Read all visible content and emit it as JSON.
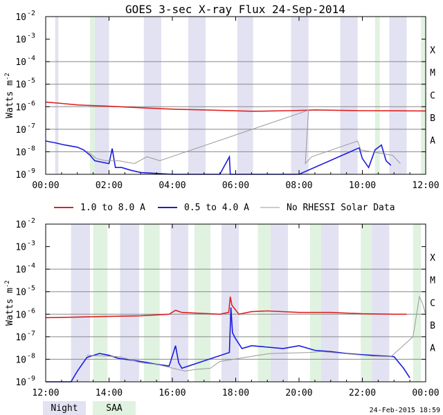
{
  "chart_data": [
    {
      "type": "line",
      "panel": "top",
      "title": "GOES 3-sec X-ray Flux   24-Sep-2014",
      "ylabel": "Watts m",
      "ylabel_sup": "-2",
      "yscale": "log",
      "ylim": [
        1e-09,
        0.01
      ],
      "ytick_exponents": [
        -2,
        -3,
        -4,
        -5,
        -6,
        -7,
        -8,
        -9
      ],
      "xlim_hours": [
        0,
        12
      ],
      "xticks": [
        "00:00",
        "02:00",
        "04:00",
        "06:00",
        "08:00",
        "10:00",
        "12:00"
      ],
      "class_labels": [
        {
          "label": "X",
          "exp": -4
        },
        {
          "label": "M",
          "exp": -5
        },
        {
          "label": "C",
          "exp": -6
        },
        {
          "label": "B",
          "exp": -7
        },
        {
          "label": "A",
          "exp": -8
        }
      ],
      "night_intervals": [
        [
          0.3,
          0.4
        ],
        [
          1.55,
          2.0
        ],
        [
          3.1,
          3.65
        ],
        [
          4.5,
          5.05
        ],
        [
          6.05,
          6.55
        ],
        [
          7.75,
          8.3
        ],
        [
          9.3,
          9.85
        ],
        [
          10.85,
          11.4
        ]
      ],
      "saa_intervals": [
        [
          1.4,
          1.55
        ],
        [
          10.4,
          10.55
        ],
        [
          11.85,
          12.0
        ]
      ],
      "series": [
        {
          "name": "1.0 to 8.0 A",
          "color": "#e02020",
          "points": [
            [
              0.0,
              1.6e-06
            ],
            [
              0.5,
              1.4e-06
            ],
            [
              1.0,
              1.2e-06
            ],
            [
              2.0,
              1.05e-06
            ],
            [
              3.0,
              9e-07
            ],
            [
              4.0,
              7.8e-07
            ],
            [
              5.0,
              7.2e-07
            ],
            [
              6.0,
              6.6e-07
            ],
            [
              6.5,
              6.3e-07
            ],
            [
              7.0,
              6.4e-07
            ],
            [
              7.7,
              6.7e-07
            ],
            [
              8.3,
              7e-07
            ],
            [
              8.5,
              7.2e-07
            ],
            [
              9.95,
              6.7e-07
            ],
            [
              11.0,
              6.6e-07
            ],
            [
              12.0,
              6.5e-07
            ]
          ]
        },
        {
          "name": "0.5 to 4.0 A",
          "color": "#1a1ae0",
          "points": [
            [
              0.0,
              3e-08
            ],
            [
              0.3,
              2.5e-08
            ],
            [
              0.6,
              2e-08
            ],
            [
              1.0,
              1.6e-08
            ],
            [
              1.2,
              1.2e-08
            ],
            [
              1.4,
              7e-09
            ],
            [
              1.55,
              4e-09
            ],
            [
              2.0,
              3e-09
            ],
            [
              2.1,
              1.4e-08
            ],
            [
              2.2,
              2e-09
            ],
            [
              2.4,
              2e-09
            ],
            [
              2.7,
              1.5e-09
            ],
            [
              3.0,
              1.2e-09
            ],
            [
              4.0,
              1e-09
            ],
            [
              5.5,
              1e-09
            ],
            [
              5.8,
              6e-09
            ],
            [
              5.83,
              1e-09
            ],
            [
              7.0,
              1e-09
            ],
            [
              7.7,
              1e-09
            ],
            [
              8.0,
              1e-09
            ],
            [
              9.9,
              1.5e-08
            ],
            [
              10.0,
              5e-09
            ],
            [
              10.2,
              2e-09
            ],
            [
              10.4,
              1.2e-08
            ],
            [
              10.6,
              2e-08
            ],
            [
              10.75,
              4e-09
            ],
            [
              10.9,
              2.5e-09
            ]
          ]
        },
        {
          "name": "No RHESSI Solar Data",
          "color": "#999999",
          "points": [
            [
              1.3,
              1.1e-08
            ],
            [
              1.6,
              5e-09
            ],
            [
              1.9,
              4e-09
            ],
            [
              2.3,
              4e-09
            ],
            [
              2.8,
              3e-09
            ],
            [
              3.2,
              6e-09
            ],
            [
              3.6,
              4e-09
            ],
            [
              8.3,
              7e-07
            ],
            [
              8.2,
              3e-09
            ],
            [
              8.4,
              6e-09
            ],
            [
              9.85,
              3e-08
            ],
            [
              9.95,
              1.2e-08
            ],
            [
              10.95,
              7e-09
            ],
            [
              11.2,
              3e-09
            ]
          ]
        }
      ]
    },
    {
      "type": "line",
      "panel": "bottom",
      "ylabel": "Watts m",
      "ylabel_sup": "-2",
      "yscale": "log",
      "ylim": [
        1e-09,
        0.01
      ],
      "ytick_exponents": [
        -2,
        -3,
        -4,
        -5,
        -6,
        -7,
        -8,
        -9
      ],
      "xlim_hours": [
        12,
        24
      ],
      "xticks": [
        "12:00",
        "14:00",
        "16:00",
        "18:00",
        "20:00",
        "22:00",
        "00:00"
      ],
      "class_labels": [
        {
          "label": "X",
          "exp": -4
        },
        {
          "label": "M",
          "exp": -5
        },
        {
          "label": "C",
          "exp": -6
        },
        {
          "label": "B",
          "exp": -7
        },
        {
          "label": "A",
          "exp": -8
        }
      ],
      "night_intervals": [
        [
          12.8,
          13.4
        ],
        [
          14.35,
          14.95
        ],
        [
          15.95,
          16.5
        ],
        [
          17.55,
          18.1
        ],
        [
          19.1,
          19.65
        ],
        [
          20.7,
          21.25
        ],
        [
          22.3,
          22.85
        ]
      ],
      "saa_intervals": [
        [
          13.5,
          13.95
        ],
        [
          15.1,
          15.6
        ],
        [
          16.7,
          17.2
        ],
        [
          18.7,
          19.1
        ],
        [
          20.35,
          20.7
        ],
        [
          21.95,
          22.3
        ],
        [
          23.6,
          23.85
        ]
      ],
      "series": [
        {
          "name": "1.0 to 8.0 A",
          "color": "#e02020",
          "points": [
            [
              12.0,
              7e-07
            ],
            [
              13.0,
              7.5e-07
            ],
            [
              14.0,
              8e-07
            ],
            [
              15.0,
              8.5e-07
            ],
            [
              15.9,
              1e-06
            ],
            [
              16.1,
              1.5e-06
            ],
            [
              16.3,
              1.2e-06
            ],
            [
              17.5,
              1e-06
            ],
            [
              17.78,
              1.2e-06
            ],
            [
              17.83,
              6e-06
            ],
            [
              17.88,
              2.5e-06
            ],
            [
              18.1,
              1e-06
            ],
            [
              18.5,
              1.3e-06
            ],
            [
              19.0,
              1.4e-06
            ],
            [
              20.0,
              1.2e-06
            ],
            [
              21.0,
              1.2e-06
            ],
            [
              22.0,
              1.05e-06
            ],
            [
              23.0,
              1e-06
            ],
            [
              23.4,
              1e-06
            ]
          ]
        },
        {
          "name": "0.5 to 4.0 A",
          "color": "#1a1ae0",
          "points": [
            [
              12.0,
              1e-09
            ],
            [
              12.8,
              1e-09
            ],
            [
              13.0,
              3e-09
            ],
            [
              13.3,
              1.2e-08
            ],
            [
              13.7,
              1.8e-08
            ],
            [
              14.0,
              1.5e-08
            ],
            [
              14.3,
              1.1e-08
            ],
            [
              15.0,
              8e-09
            ],
            [
              15.5,
              6e-09
            ],
            [
              15.9,
              5e-09
            ],
            [
              16.1,
              4e-08
            ],
            [
              16.2,
              7e-09
            ],
            [
              16.3,
              4e-09
            ],
            [
              17.8,
              2e-08
            ],
            [
              17.85,
              2e-06
            ],
            [
              17.9,
              1.5e-07
            ],
            [
              18.0,
              8e-08
            ],
            [
              18.2,
              3e-08
            ],
            [
              18.5,
              4e-08
            ],
            [
              19.5,
              3e-08
            ],
            [
              20.0,
              4e-08
            ],
            [
              20.5,
              2.5e-08
            ],
            [
              21.0,
              2.2e-08
            ],
            [
              21.5,
              1.8e-08
            ],
            [
              22.0,
              1.6e-08
            ],
            [
              23.0,
              1.3e-08
            ],
            [
              23.3,
              4e-09
            ],
            [
              23.5,
              1.5e-09
            ]
          ]
        },
        {
          "name": "No RHESSI Solar Data",
          "color": "#999999",
          "points": [
            [
              13.3,
              1.5e-08
            ],
            [
              14.35,
              1.3e-08
            ],
            [
              15.0,
              7e-09
            ],
            [
              15.5,
              6e-09
            ],
            [
              16.4,
              3e-09
            ],
            [
              16.7,
              3.5e-09
            ],
            [
              17.2,
              4e-09
            ],
            [
              17.5,
              8e-09
            ],
            [
              18.7,
              1.5e-08
            ],
            [
              19.1,
              1.8e-08
            ],
            [
              20.35,
              2e-08
            ],
            [
              20.7,
              2.2e-08
            ],
            [
              22.3,
              1.4e-08
            ],
            [
              22.9,
              1.3e-08
            ],
            [
              23.6,
              1e-07
            ],
            [
              23.8,
              6e-06
            ],
            [
              23.9,
              3e-06
            ],
            [
              24.0,
              1e-06
            ]
          ]
        }
      ]
    }
  ],
  "legend": {
    "items": [
      {
        "label": "1.0 to 8.0 A",
        "color": "#e02020"
      },
      {
        "label": "0.5 to 4.0 A",
        "color": "#1a1ae0"
      },
      {
        "label": "No RHESSI Solar Data",
        "color": "#999999"
      }
    ],
    "night_label": "Night",
    "saa_label": "SAA",
    "night_color": "#e2e2f2",
    "saa_color": "#e0f2e0"
  },
  "footer_timestamp": "24-Feb-2015 18:59"
}
